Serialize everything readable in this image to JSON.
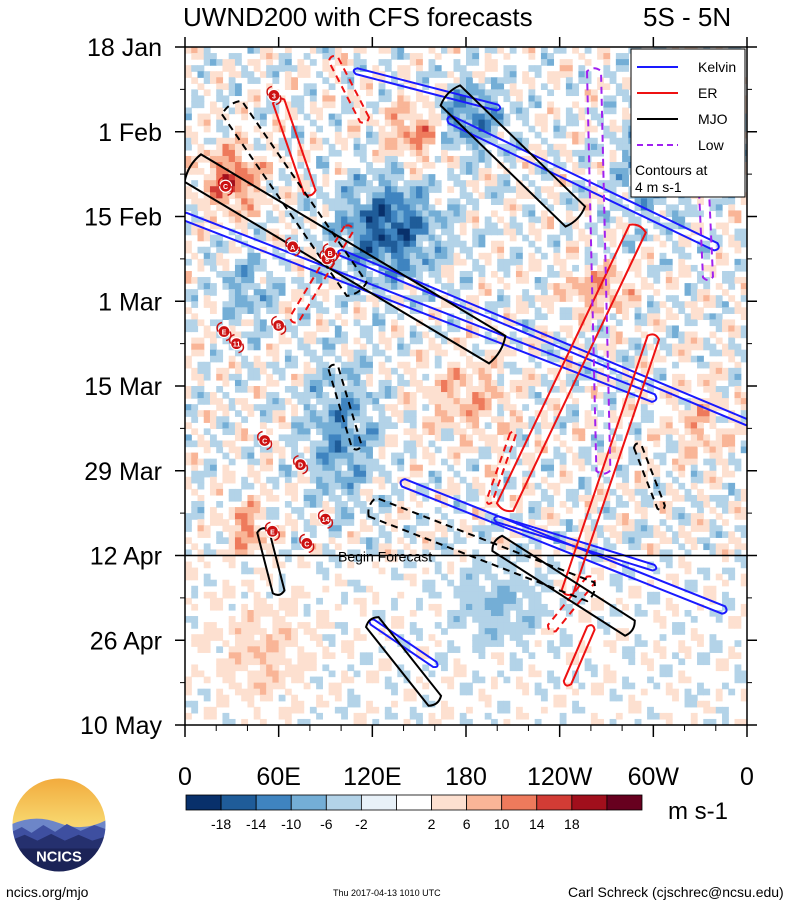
{
  "chart_data": {
    "type": "heatmap",
    "title": "UWND200 with CFS forecasts",
    "region": "5S - 5N",
    "y_ticks": [
      "18 Jan",
      "1 Feb",
      "15 Feb",
      "1 Mar",
      "15 Mar",
      "29 Mar",
      "12 Apr",
      "26 Apr",
      "10 May"
    ],
    "x_ticks": [
      "0",
      "60E",
      "120E",
      "180",
      "120W",
      "60W",
      "0"
    ],
    "x_range_deg": [
      0,
      360
    ],
    "forecast_label": "Begin Forecast",
    "legend": [
      {
        "name": "Kelvin",
        "color": "#1a1aff"
      },
      {
        "name": "ER",
        "color": "#ee1111"
      },
      {
        "name": "MJO",
        "color": "#000000"
      },
      {
        "name": "Low",
        "color": "#a020f0"
      }
    ],
    "legend_note": "Contours at\n4 m s-1",
    "colorbar": {
      "labels": [
        "-18",
        "-14",
        "-10",
        "-6",
        "-2",
        "2",
        "6",
        "10",
        "14",
        "18"
      ],
      "colors": [
        "#08306b",
        "#1f5c99",
        "#3f84c0",
        "#74aed6",
        "#b3d3e8",
        "#e8f1f8",
        "#ffffff",
        "#fde0d0",
        "#f9b597",
        "#ee7a5c",
        "#d23c35",
        "#a10f1c",
        "#67001f"
      ],
      "units": "m s-1"
    },
    "storm_markers": [
      {
        "label": "3",
        "lon": 57,
        "date": "26 Jan"
      },
      {
        "label": "C",
        "lon": 26,
        "date": "10 Feb"
      },
      {
        "label": "A",
        "lon": 69,
        "date": "20 Feb"
      },
      {
        "label": "8",
        "lon": 91,
        "date": "22 Feb"
      },
      {
        "label": "B",
        "lon": 93,
        "date": "21 Feb"
      },
      {
        "label": "E",
        "lon": 25,
        "date": "6 Mar"
      },
      {
        "label": "11",
        "lon": 33,
        "date": "8 Mar"
      },
      {
        "label": "B",
        "lon": 60,
        "date": "5 Mar"
      },
      {
        "label": "C",
        "lon": 51,
        "date": "24 Mar"
      },
      {
        "label": "D",
        "lon": 74,
        "date": "28 Mar"
      },
      {
        "label": "14",
        "lon": 90,
        "date": "6 Apr"
      },
      {
        "label": "E",
        "lon": 56,
        "date": "8 Apr"
      },
      {
        "label": "C",
        "lon": 78,
        "date": "10 Apr"
      }
    ]
  },
  "footer": {
    "left": "ncics.org/mjo",
    "timestamp": "Thu 2017-04-13 1010 UTC",
    "author": "Carl Schreck (cjschrec@ncsu.edu)"
  },
  "logo": {
    "text": "NCICS"
  }
}
